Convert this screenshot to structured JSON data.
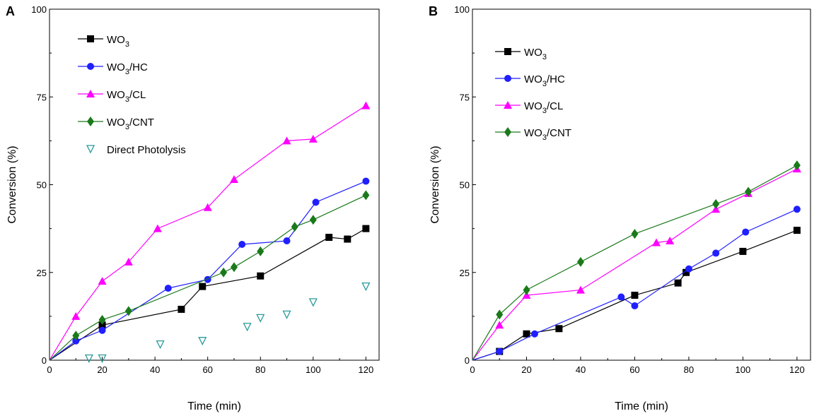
{
  "chart_data": [
    {
      "panel": "A",
      "type": "line",
      "xlabel": "Time (min)",
      "ylabel": "Conversion (%)",
      "xlim": [
        0,
        125
      ],
      "ylim": [
        0,
        100
      ],
      "xticks": [
        "0",
        "20",
        "40",
        "60",
        "80",
        "100",
        "120"
      ],
      "yticks": [
        "0",
        "25",
        "50",
        "75",
        "100"
      ],
      "legend_position": "top-left",
      "series": [
        {
          "name": "WO3",
          "legend_main": "WO",
          "legend_sub": "3",
          "legend_tail": "",
          "marker": "square",
          "color": "#000000",
          "line": true,
          "x": [
            0,
            20,
            50,
            58,
            80,
            106,
            113,
            120
          ],
          "y": [
            0,
            10,
            14.5,
            21,
            24,
            35,
            34.5,
            37.5
          ]
        },
        {
          "name": "WO3/HC",
          "legend_main": "WO",
          "legend_sub": "3",
          "legend_tail": "/HC",
          "marker": "circle",
          "color": "#1f1fff",
          "line": true,
          "x": [
            0,
            10,
            20,
            45,
            60,
            73,
            90,
            101,
            120
          ],
          "y": [
            0,
            5.5,
            8.5,
            20.5,
            23,
            33,
            34,
            45,
            51
          ]
        },
        {
          "name": "WO3/CL",
          "legend_main": "WO",
          "legend_sub": "3",
          "legend_tail": "/CL",
          "marker": "triangle",
          "color": "#ff00ff",
          "line": true,
          "x": [
            0,
            10,
            20,
            30,
            41,
            60,
            70,
            90,
            100,
            120
          ],
          "y": [
            0,
            12.5,
            22.5,
            28,
            37.5,
            43.5,
            51.5,
            62.5,
            63,
            72.5
          ]
        },
        {
          "name": "WO3/CNT",
          "legend_main": "WO",
          "legend_sub": "3",
          "legend_tail": "/CNT",
          "marker": "diamond",
          "color": "#1a7a1a",
          "line": true,
          "x": [
            0,
            10,
            20,
            30,
            66,
            70,
            80,
            93,
            100,
            120
          ],
          "y": [
            0,
            7,
            11.5,
            14,
            25,
            26.5,
            31,
            38,
            40,
            47
          ]
        },
        {
          "name": "Direct Photolysis",
          "legend_main": "Direct Photolysis",
          "legend_sub": "",
          "legend_tail": "",
          "marker": "triangle-down-open",
          "color": "#2a9a9a",
          "line": false,
          "x": [
            15,
            20,
            42,
            58,
            75,
            80,
            90,
            100,
            120
          ],
          "y": [
            0.5,
            0.5,
            4.5,
            5.5,
            9.5,
            12,
            13,
            16.5,
            21
          ]
        }
      ]
    },
    {
      "panel": "B",
      "type": "line",
      "xlabel": "Time (min)",
      "ylabel": "Conversion (%)",
      "xlim": [
        0,
        125
      ],
      "ylim": [
        0,
        100
      ],
      "xticks": [
        "0",
        "20",
        "40",
        "60",
        "80",
        "100",
        "120"
      ],
      "yticks": [
        "0",
        "25",
        "50",
        "75",
        "100"
      ],
      "legend_position": "top-left",
      "series": [
        {
          "name": "WO3",
          "legend_main": "WO",
          "legend_sub": "3",
          "legend_tail": "",
          "marker": "square",
          "color": "#000000",
          "line": true,
          "x": [
            0,
            10,
            20,
            32,
            60,
            76,
            79,
            100,
            120
          ],
          "y": [
            0,
            2.5,
            7.5,
            9,
            18.5,
            22,
            25,
            31,
            37
          ]
        },
        {
          "name": "WO3/HC",
          "legend_main": "WO",
          "legend_sub": "3",
          "legend_tail": "/HC",
          "marker": "circle",
          "color": "#1f1fff",
          "line": true,
          "x": [
            0,
            10,
            23,
            55,
            60,
            80,
            90,
            101,
            120
          ],
          "y": [
            0,
            2.5,
            7.5,
            18,
            15.5,
            26,
            30.5,
            36.5,
            43
          ]
        },
        {
          "name": "WO3/CL",
          "legend_main": "WO",
          "legend_sub": "3",
          "legend_tail": "/CL",
          "marker": "triangle",
          "color": "#ff00ff",
          "line": true,
          "x": [
            0,
            10,
            20,
            40,
            68,
            73,
            90,
            102,
            120
          ],
          "y": [
            0,
            10,
            18.5,
            20,
            33.5,
            34,
            43,
            47.5,
            54.5
          ]
        },
        {
          "name": "WO3/CNT",
          "legend_main": "WO",
          "legend_sub": "3",
          "legend_tail": "/CNT",
          "marker": "diamond",
          "color": "#1a7a1a",
          "line": true,
          "x": [
            0,
            10,
            20,
            40,
            60,
            90,
            102,
            120
          ],
          "y": [
            0,
            13,
            20,
            28,
            36,
            44.5,
            48,
            55.5
          ]
        }
      ]
    }
  ]
}
